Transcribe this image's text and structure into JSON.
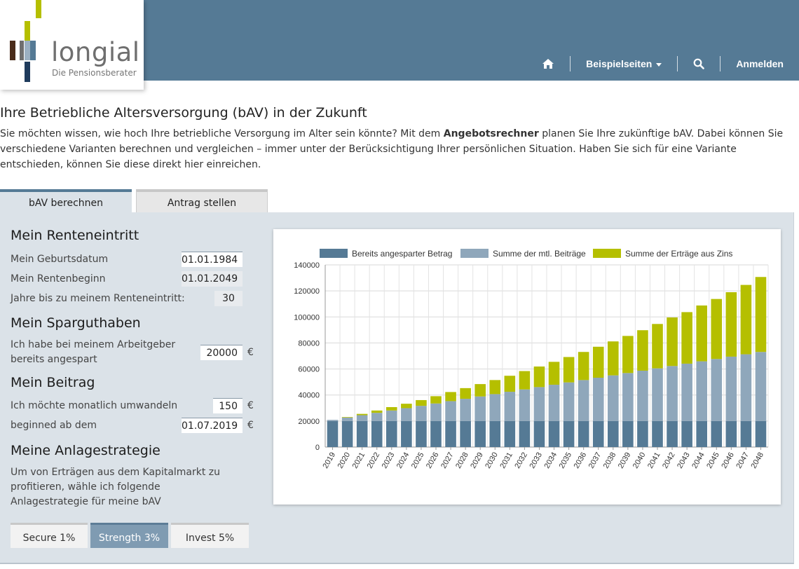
{
  "header": {
    "logo_text": "longial",
    "logo_subtitle": "Die Pensionsberater",
    "nav": {
      "home_icon": "home-icon",
      "examples_label": "Beispielseiten",
      "search_icon": "search-icon",
      "login_label": "Anmelden"
    }
  },
  "page": {
    "title": "Ihre Betriebliche Altersversorgung (bAV) in der Zukunft",
    "intro_before": "Sie möchten wissen, wie hoch Ihre betriebliche Versorgung im Alter sein könnte? Mit dem ",
    "intro_bold": "Angebotsrechner",
    "intro_after": " planen Sie Ihre zukünftige bAV. Dabei können Sie verschiedene Varianten berechnen und vergleichen – immer unter der Berücksichtigung Ihrer persönlichen Situation. Haben Sie sich für eine Variante entschieden, können Sie diese direkt hier einreichen."
  },
  "tabs": [
    "bAV berechnen",
    "Antrag stellen"
  ],
  "form": {
    "retirement": {
      "heading": "Mein Renteneintritt",
      "birthdate_label": "Mein Geburtsdatum",
      "birthdate_value": "01.01.1984",
      "pension_start_label": "Mein Rentenbeginn",
      "pension_start_value": "01.01.2049",
      "years_label": "Jahre bis zu meinem Renteneintritt:",
      "years_value": "30"
    },
    "savings": {
      "heading": "Mein Sparguthaben",
      "label": "Ich habe bei meinem Arbeitgeber bereits angespart",
      "value": "20000",
      "unit": "€"
    },
    "contribution": {
      "heading": "Mein Beitrag",
      "monthly_label": "Ich möchte monatlich umwandeln",
      "monthly_value": "150",
      "monthly_unit": "€",
      "start_label": "beginned ab dem",
      "start_value": "01.07.2019",
      "start_unit": "€"
    },
    "strategy": {
      "heading": "Meine Anlagestrategie",
      "description": "Um von Erträgen aus dem Kapitalmarkt zu profitieren, wähle ich folgende Anlagestrategie für meine bAV",
      "options": [
        "Secure 1%",
        "Strength 3%",
        "Invest 5%"
      ],
      "selected": "Strength 3%"
    }
  },
  "colors": {
    "header_bg": "#557a95",
    "panel_bg": "#dbe2e8",
    "series_saved": "#557a95",
    "series_contrib": "#8fa7bb",
    "series_interest": "#b5bf00"
  },
  "chart_data": {
    "type": "bar",
    "stacked": true,
    "categories": [
      "2019",
      "2020",
      "2021",
      "2022",
      "2023",
      "2024",
      "2025",
      "2026",
      "2027",
      "2028",
      "2029",
      "2030",
      "2031",
      "2032",
      "2033",
      "2034",
      "2035",
      "2036",
      "2037",
      "2038",
      "2039",
      "2040",
      "2041",
      "2042",
      "2043",
      "2044",
      "2045",
      "2046",
      "2047",
      "2048"
    ],
    "series": [
      {
        "name": "Bereits angesparter Betrag",
        "values": [
          20000,
          20000,
          20000,
          20000,
          20000,
          20000,
          20000,
          20000,
          20000,
          20000,
          20000,
          20000,
          20000,
          20000,
          20000,
          20000,
          20000,
          20000,
          20000,
          20000,
          20000,
          20000,
          20000,
          20000,
          20000,
          20000,
          20000,
          20000,
          20000,
          20000
        ]
      },
      {
        "name": "Summe der mtl. Beiträge",
        "values": [
          900,
          2700,
          4500,
          6300,
          8100,
          9900,
          11700,
          13500,
          15300,
          17100,
          18900,
          20700,
          22500,
          24300,
          26100,
          27900,
          29700,
          31500,
          33300,
          35100,
          36900,
          38700,
          40500,
          42300,
          44100,
          45900,
          47700,
          49500,
          51300,
          53100
        ]
      },
      {
        "name": "Summe der Erträge aus Zins",
        "values": [
          0,
          400,
          1000,
          1800,
          2600,
          3400,
          4400,
          5600,
          7000,
          8200,
          9500,
          10800,
          12300,
          14100,
          15800,
          17600,
          19500,
          21600,
          23800,
          26100,
          28500,
          31100,
          34100,
          37300,
          39600,
          42900,
          46100,
          49500,
          53300,
          57600
        ]
      }
    ],
    "xlabel": "",
    "ylabel": "",
    "ylim": [
      0,
      140000
    ],
    "yticks": [
      0,
      20000,
      40000,
      60000,
      80000,
      100000,
      120000,
      140000
    ],
    "grid": true,
    "legend_position": "top"
  }
}
